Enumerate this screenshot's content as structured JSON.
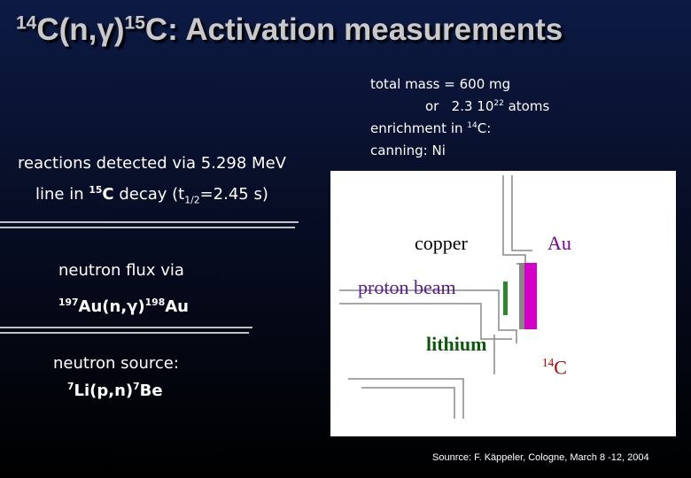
{
  "title": [
    "14",
    "C(n,γ)",
    "15",
    "C: Activation measurements"
  ],
  "left": {
    "detection": [
      "reactions detected via 5.298 MeV"
    ],
    "line": [
      "line in ",
      "15",
      "C",
      " decay (t",
      "1/2",
      "=2.45 s)"
    ],
    "flux": [
      "neutron flux via"
    ],
    "flux_reaction": [
      "197",
      "Au(n,γ)",
      "198",
      "Au"
    ],
    "source": [
      "neutron source:"
    ],
    "source_reaction": [
      "7",
      "Li(p,n)",
      "7",
      "Be"
    ]
  },
  "sample": {
    "mass": [
      "total mass = 600 mg"
    ],
    "atoms": [
      "or   2.3 10",
      "22",
      " atoms"
    ],
    "enrichment": [
      "enrichment in ",
      "14",
      "C:"
    ],
    "canning": [
      "canning: Ni"
    ]
  },
  "diagram": {
    "copper": "copper",
    "au": "Au",
    "beam": "proton beam",
    "lithium": "lithium",
    "product": [
      "14",
      "C"
    ]
  },
  "credit": "Sounrce: F. Käppeler, Cologne, March 8 -12, 2004"
}
